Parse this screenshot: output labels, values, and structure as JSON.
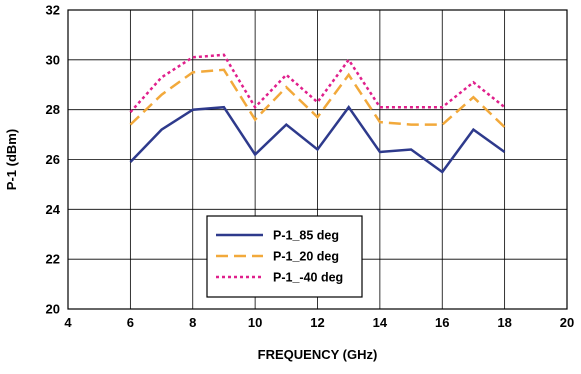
{
  "chart_data": {
    "type": "line",
    "title": "",
    "xlabel": "FREQUENCY (GHz)",
    "ylabel": "P-1 (dBm)",
    "xlim": [
      4,
      20
    ],
    "ylim": [
      20,
      32
    ],
    "xticks": [
      4,
      6,
      8,
      10,
      12,
      14,
      16,
      18,
      20
    ],
    "yticks": [
      20,
      22,
      24,
      26,
      28,
      30,
      32
    ],
    "xtick_labels": [
      "4",
      "6",
      "8",
      "10",
      "12",
      "14",
      "16",
      "18",
      "20"
    ],
    "ytick_labels": [
      "20",
      "22",
      "24",
      "26",
      "28",
      "30",
      "32"
    ],
    "grid": true,
    "legend_position": "bottom-center",
    "x": [
      6,
      7,
      8,
      9,
      10,
      11,
      12,
      13,
      14,
      15,
      16,
      17,
      18
    ],
    "series": [
      {
        "name": "P-1_85 deg",
        "color": "#2E3A8C",
        "style": "solid",
        "values": [
          25.9,
          27.2,
          28.0,
          28.1,
          26.2,
          27.4,
          26.4,
          28.1,
          26.3,
          26.4,
          25.5,
          27.2,
          26.3
        ]
      },
      {
        "name": "P-1_20 deg",
        "color": "#F2A93B",
        "style": "dashed",
        "values": [
          27.4,
          28.6,
          29.5,
          29.6,
          27.6,
          28.9,
          27.7,
          29.4,
          27.5,
          27.4,
          27.4,
          28.5,
          27.3
        ]
      },
      {
        "name": "P-1_-40 deg",
        "color": "#E0208C",
        "style": "dotted",
        "values": [
          27.9,
          29.3,
          30.1,
          30.2,
          28.1,
          29.4,
          28.3,
          30.0,
          28.1,
          28.1,
          28.1,
          29.1,
          28.1
        ]
      }
    ]
  }
}
